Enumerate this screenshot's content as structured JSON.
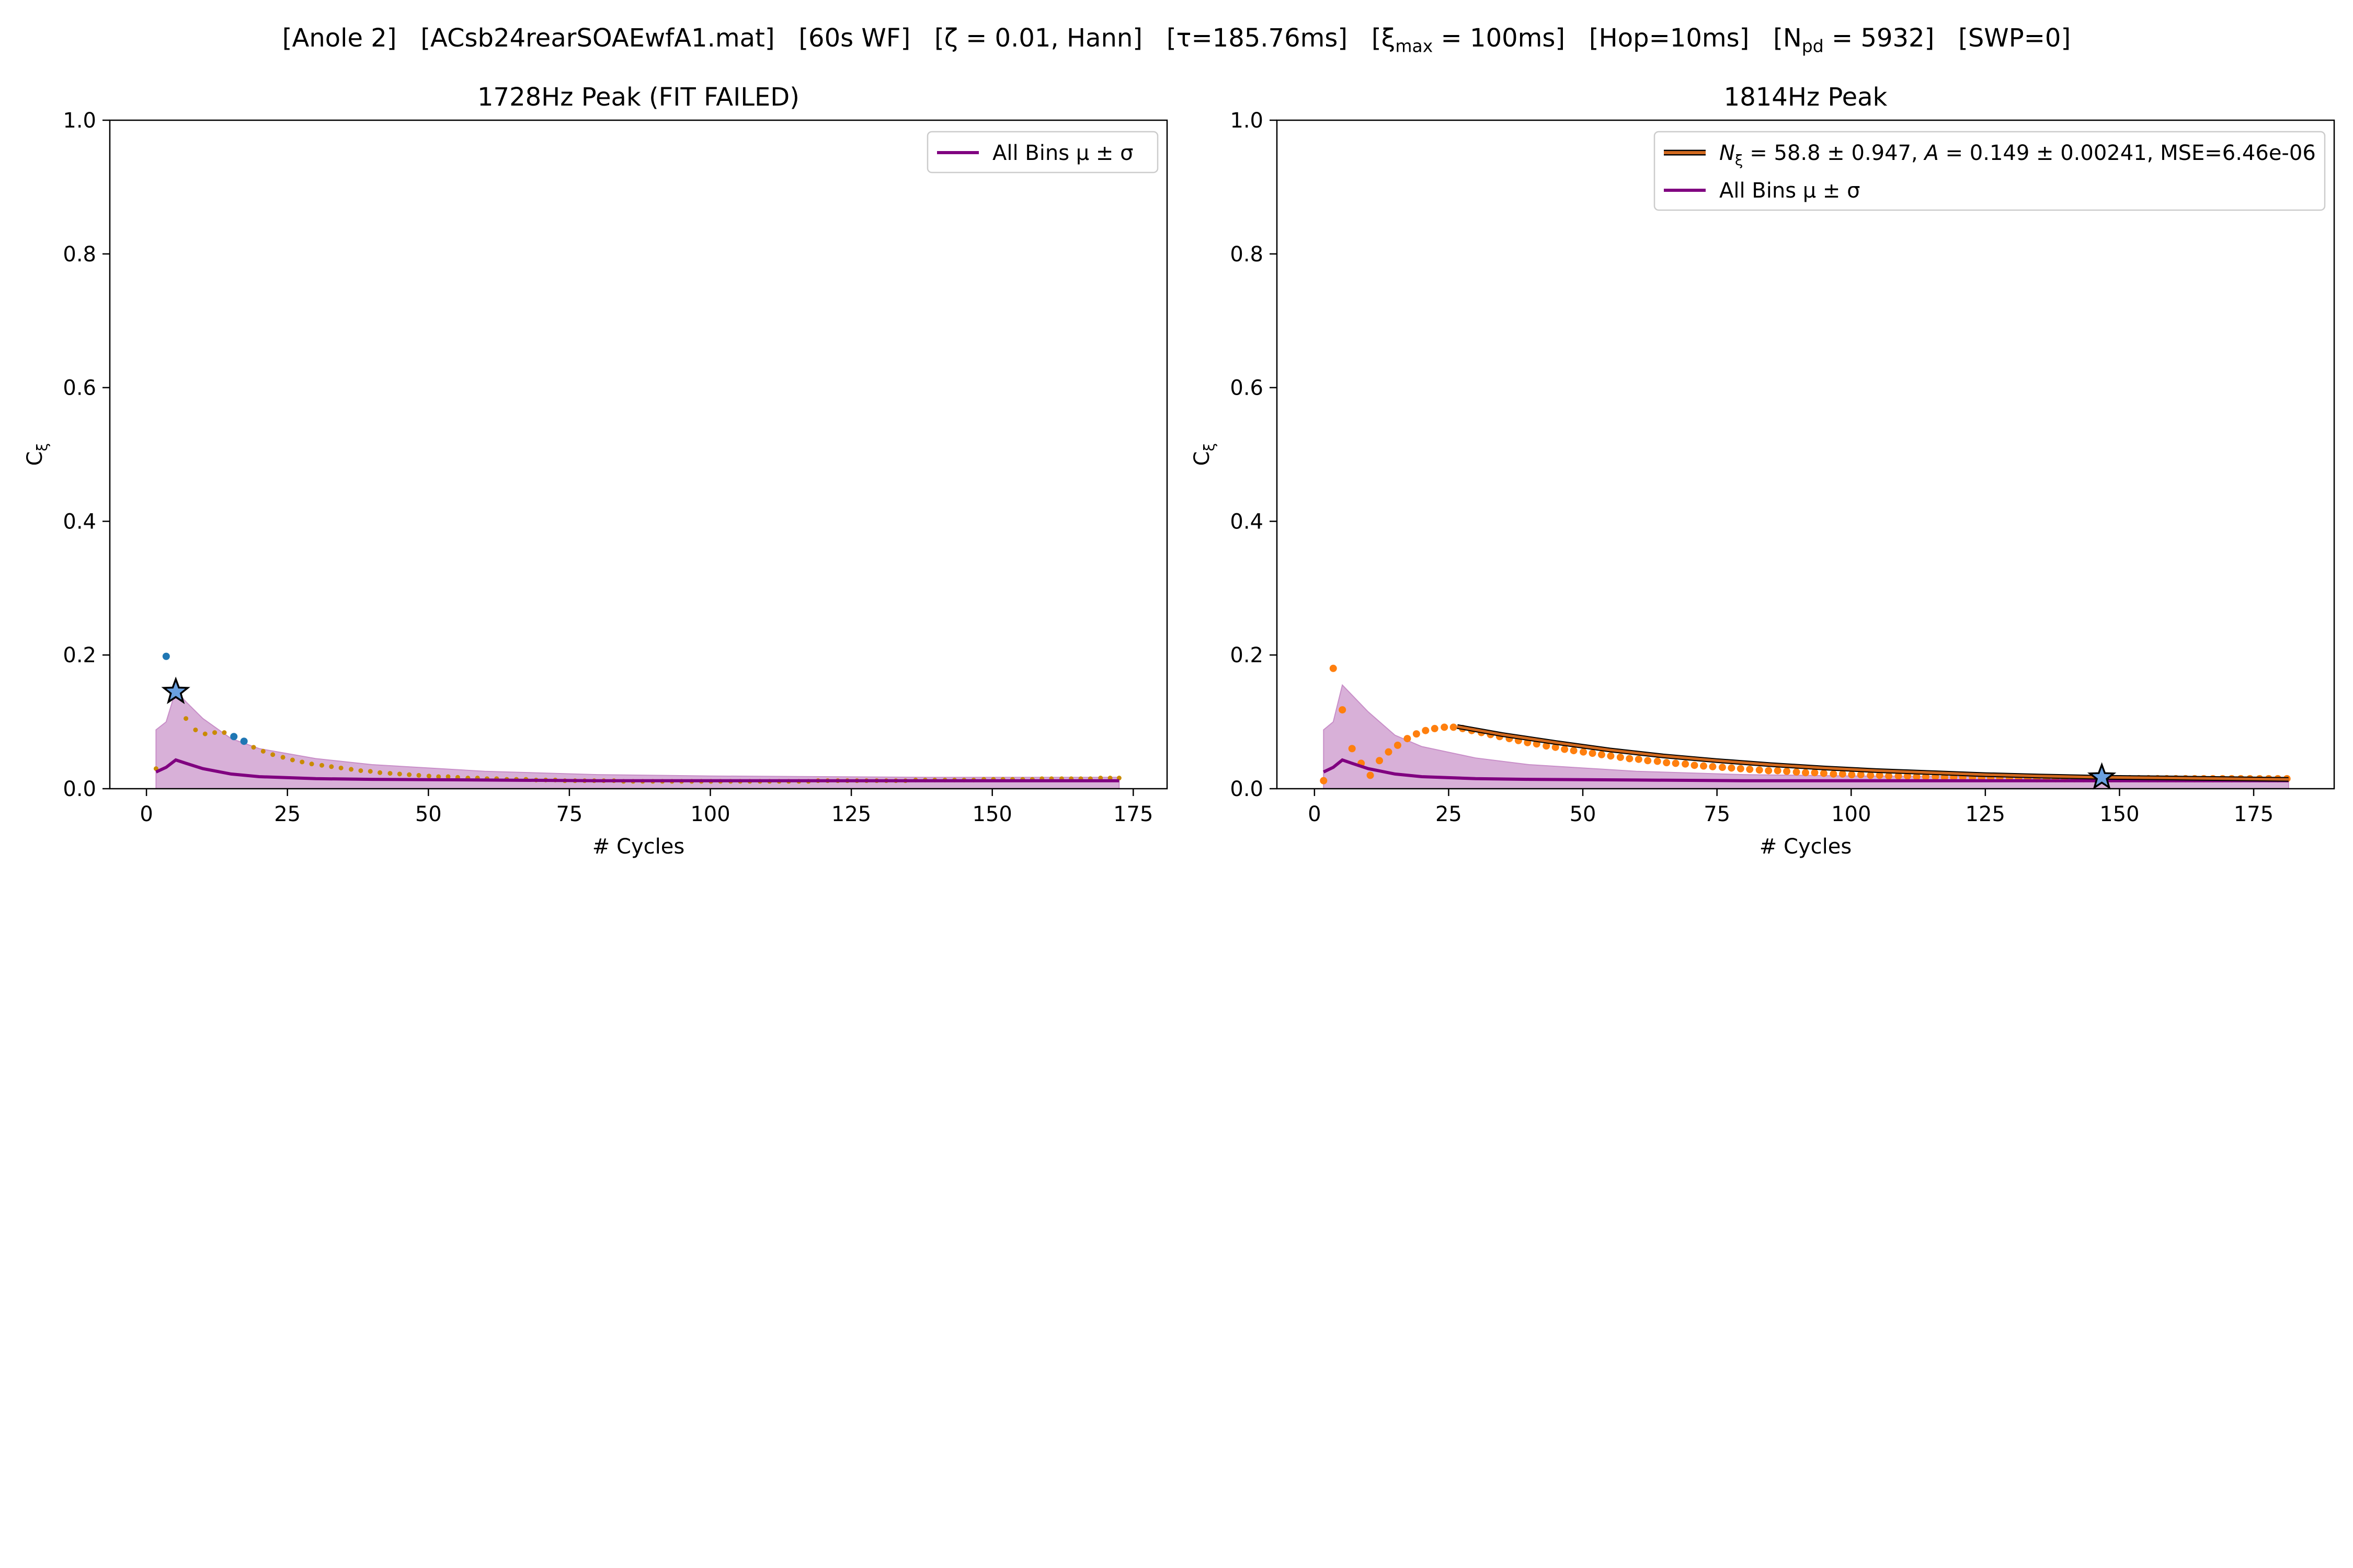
{
  "suptitle_parts": {
    "anole": "[Anole 2]",
    "file": "[ACsb24rearSOAEwfA1.mat]",
    "wf": "[60s WF]",
    "zeta": "[ζ = 0.01, Hann]",
    "tau": "[τ=185.76ms]",
    "xi_max_prefix": "[ξ",
    "xi_max_sub": "max",
    "xi_max_suffix": " = 100ms]",
    "hop": "[Hop=10ms]",
    "npd_prefix": "[N",
    "npd_sub": "pd",
    "npd_suffix": " = 5932]",
    "swp": "[SWP=0]"
  },
  "colors": {
    "mean_line": "#800080",
    "band_fill": "#c88ec8",
    "orange_points": "#ff7f0e",
    "blue_points": "#1f77b4",
    "fit_line": "#d2691e",
    "fit_edge": "#000000",
    "star_fill": "#6aa0e0",
    "small_points": "#c98a00"
  },
  "chart_data": [
    {
      "type": "scatter",
      "title": "1728Hz Peak (FIT FAILED)",
      "xlabel": "# Cycles",
      "ylabel": "C",
      "ylabel_sub": "ξ",
      "xlim": [
        -6.5,
        181
      ],
      "ylim": [
        0.0,
        1.0
      ],
      "xticks": [
        "0",
        "25",
        "50",
        "75",
        "100",
        "125",
        "150",
        "175"
      ],
      "yticks": [
        "0.0",
        "0.2",
        "0.4",
        "0.6",
        "0.8",
        "1.0"
      ],
      "grid": false,
      "legend_position": "upper right",
      "legend": [
        {
          "label": "All Bins μ ± σ",
          "kind": "line"
        }
      ],
      "mean_series": {
        "name": "All Bins μ ± σ",
        "x": [
          1.7,
          3.5,
          5.2,
          7,
          10,
          15,
          20,
          30,
          40,
          60,
          80,
          100,
          120,
          140,
          160,
          172.5
        ],
        "mean": [
          0.025,
          0.032,
          0.043,
          0.038,
          0.03,
          0.022,
          0.018,
          0.015,
          0.014,
          0.013,
          0.012,
          0.012,
          0.012,
          0.012,
          0.012,
          0.012
        ],
        "upper": [
          0.088,
          0.1,
          0.147,
          0.13,
          0.105,
          0.075,
          0.06,
          0.045,
          0.036,
          0.026,
          0.021,
          0.019,
          0.018,
          0.017,
          0.017,
          0.017
        ],
        "lower": [
          0.0,
          0.0,
          0.0,
          0.0,
          0.0,
          0.0,
          0.0,
          0.0,
          0.0,
          0.0,
          0.0,
          0.0,
          0.0,
          0.0,
          0.0,
          0.0
        ]
      },
      "small_points": {
        "x": [
          1.7,
          5.2,
          7,
          8.7,
          10.4,
          12.1,
          13.8,
          17.3,
          19,
          20.7,
          22.4,
          24.2,
          25.9,
          27.6,
          29.3,
          31.1,
          32.8,
          34.5,
          36.3,
          38,
          39.7,
          41.4,
          43.2,
          44.9,
          46.6,
          48.3,
          50.1,
          51.8,
          53.5,
          55.2,
          57,
          58.7,
          60.4,
          62.1,
          63.9,
          65.6,
          67.3,
          69.1,
          70.8,
          72.5,
          74.2,
          76,
          77.7,
          79.4,
          81.1,
          82.9,
          84.6,
          86.3,
          88,
          89.8,
          91.5,
          93.2,
          94.9,
          96.7,
          98.4,
          100.1,
          101.8,
          103.6,
          105.3,
          107,
          108.8,
          110.5,
          112.2,
          113.9,
          115.7,
          117.4,
          119.1,
          120.8,
          122.6,
          124.3,
          126,
          127.7,
          129.5,
          131.2,
          132.9,
          134.6,
          136.4,
          138.1,
          139.8,
          141.6,
          143.3,
          145,
          146.7,
          148.5,
          150.2,
          151.9,
          153.6,
          155.4,
          157.1,
          158.8,
          160.5,
          162.3,
          164,
          165.7,
          167.4,
          169.2,
          170.9,
          172.5
        ],
        "y": [
          0.03,
          0.145,
          0.105,
          0.088,
          0.082,
          0.084,
          0.084,
          0.071,
          0.062,
          0.056,
          0.051,
          0.047,
          0.043,
          0.04,
          0.037,
          0.035,
          0.033,
          0.031,
          0.029,
          0.027,
          0.026,
          0.024,
          0.023,
          0.022,
          0.021,
          0.02,
          0.019,
          0.018,
          0.018,
          0.017,
          0.016,
          0.016,
          0.015,
          0.015,
          0.014,
          0.014,
          0.014,
          0.013,
          0.013,
          0.013,
          0.012,
          0.012,
          0.012,
          0.012,
          0.012,
          0.012,
          0.011,
          0.011,
          0.011,
          0.011,
          0.011,
          0.011,
          0.011,
          0.011,
          0.011,
          0.011,
          0.011,
          0.011,
          0.011,
          0.011,
          0.011,
          0.011,
          0.011,
          0.011,
          0.011,
          0.011,
          0.012,
          0.012,
          0.012,
          0.012,
          0.012,
          0.012,
          0.012,
          0.012,
          0.012,
          0.012,
          0.013,
          0.013,
          0.013,
          0.013,
          0.013,
          0.013,
          0.013,
          0.014,
          0.014,
          0.014,
          0.014,
          0.014,
          0.014,
          0.015,
          0.015,
          0.015,
          0.015,
          0.015,
          0.015,
          0.016,
          0.016,
          0.016
        ]
      },
      "blue_points": {
        "x": [
          3.5,
          15.5,
          17.3
        ],
        "y": [
          0.198,
          0.078,
          0.071
        ]
      },
      "star": {
        "x": 5.2,
        "y": 0.145
      }
    },
    {
      "type": "scatter",
      "title": "1814Hz Peak",
      "xlabel": "# Cycles",
      "ylabel": "C",
      "ylabel_sub": "ξ",
      "xlim": [
        -7,
        190
      ],
      "ylim": [
        0.0,
        1.0
      ],
      "xticks": [
        "0",
        "25",
        "50",
        "75",
        "100",
        "125",
        "150",
        "175"
      ],
      "yticks": [
        "0.0",
        "0.2",
        "0.4",
        "0.6",
        "0.8",
        "1.0"
      ],
      "grid": false,
      "legend_position": "upper right",
      "legend": [
        {
          "label_parts": [
            "N",
            "ξ",
            " = 58.8 ± 0.947, ",
            "A",
            " = 0.149 ± 0.00241, MSE=6.46e-06"
          ],
          "kind": "fit"
        },
        {
          "label": "All Bins μ ± σ",
          "kind": "line"
        }
      ],
      "mean_series": {
        "name": "All Bins μ ± σ",
        "x": [
          1.7,
          3.5,
          5.2,
          7,
          10,
          15,
          20,
          30,
          40,
          60,
          80,
          100,
          120,
          140,
          160,
          181.5
        ],
        "mean": [
          0.025,
          0.032,
          0.043,
          0.038,
          0.03,
          0.022,
          0.018,
          0.015,
          0.014,
          0.013,
          0.012,
          0.012,
          0.012,
          0.012,
          0.012,
          0.012
        ],
        "upper": [
          0.088,
          0.1,
          0.155,
          0.14,
          0.115,
          0.08,
          0.063,
          0.046,
          0.036,
          0.026,
          0.021,
          0.019,
          0.018,
          0.017,
          0.017,
          0.017
        ],
        "lower": [
          0.0,
          0.0,
          0.0,
          0.0,
          0.0,
          0.0,
          0.0,
          0.0,
          0.0,
          0.0,
          0.0,
          0.0,
          0.0,
          0.0,
          0.0,
          0.0
        ]
      },
      "fit_line": {
        "x": [
          26.6,
          35,
          45,
          55,
          65,
          75,
          85,
          95,
          105,
          115,
          125,
          135,
          147,
          160,
          170,
          181.5
        ],
        "y": [
          0.093,
          0.081,
          0.069,
          0.058,
          0.049,
          0.042,
          0.036,
          0.031,
          0.027,
          0.024,
          0.021,
          0.019,
          0.017,
          0.016,
          0.015,
          0.014
        ]
      },
      "orange_points": {
        "x": [
          1.7,
          3.5,
          5.2,
          7,
          8.7,
          10.4,
          12.1,
          13.8,
          15.5,
          17.3,
          19,
          20.7,
          22.4,
          24.2,
          25.9,
          27.6,
          29.3,
          31.1,
          32.8,
          34.5,
          36.3,
          38,
          39.7,
          41.4,
          43.2,
          44.9,
          46.6,
          48.3,
          50.1,
          51.8,
          53.5,
          55.2,
          57,
          58.7,
          60.4,
          62.1,
          63.9,
          65.6,
          67.3,
          69.1,
          70.8,
          72.5,
          74.2,
          76,
          77.7,
          79.4,
          81.1,
          82.9,
          84.6,
          86.3,
          88,
          89.8,
          91.5,
          93.2,
          94.9,
          96.7,
          98.4,
          100.1,
          101.8,
          103.6,
          105.3,
          107,
          108.8,
          110.5,
          112.2,
          113.9,
          115.7,
          117.4,
          119.1,
          120.8,
          122.6,
          124.3,
          126,
          127.7,
          129.5,
          131.2,
          132.9,
          134.6,
          136.4,
          138.1,
          139.8,
          141.6,
          143.3,
          145,
          146.7,
          148.5,
          150.2,
          151.9,
          153.6,
          155.4,
          157.1,
          158.8,
          160.5,
          162.3,
          164,
          165.7,
          167.4,
          169.2,
          170.9,
          172.6,
          174.3,
          176.1,
          177.8,
          179.5,
          181.2
        ],
        "y": [
          0.012,
          0.18,
          0.118,
          0.06,
          0.038,
          0.02,
          0.042,
          0.055,
          0.065,
          0.075,
          0.082,
          0.087,
          0.09,
          0.092,
          0.092,
          0.09,
          0.087,
          0.084,
          0.081,
          0.078,
          0.075,
          0.072,
          0.069,
          0.067,
          0.064,
          0.062,
          0.059,
          0.057,
          0.055,
          0.053,
          0.051,
          0.049,
          0.047,
          0.045,
          0.044,
          0.042,
          0.041,
          0.039,
          0.038,
          0.037,
          0.035,
          0.034,
          0.033,
          0.032,
          0.031,
          0.03,
          0.029,
          0.028,
          0.027,
          0.027,
          0.026,
          0.025,
          0.024,
          0.024,
          0.023,
          0.022,
          0.022,
          0.021,
          0.021,
          0.02,
          0.02,
          0.019,
          0.019,
          0.019,
          0.018,
          0.018,
          0.018,
          0.017,
          0.017,
          0.017,
          0.017,
          0.016,
          0.016,
          0.016,
          0.016,
          0.016,
          0.016,
          0.015,
          0.015,
          0.015,
          0.015,
          0.015,
          0.015,
          0.015,
          0.015,
          0.015,
          0.015,
          0.015,
          0.015,
          0.015,
          0.015,
          0.015,
          0.015,
          0.015,
          0.015,
          0.015,
          0.015,
          0.015,
          0.015,
          0.015,
          0.015,
          0.015,
          0.015,
          0.015,
          0.015
        ]
      },
      "star": {
        "x": 146.7,
        "y": 0.017
      }
    }
  ]
}
